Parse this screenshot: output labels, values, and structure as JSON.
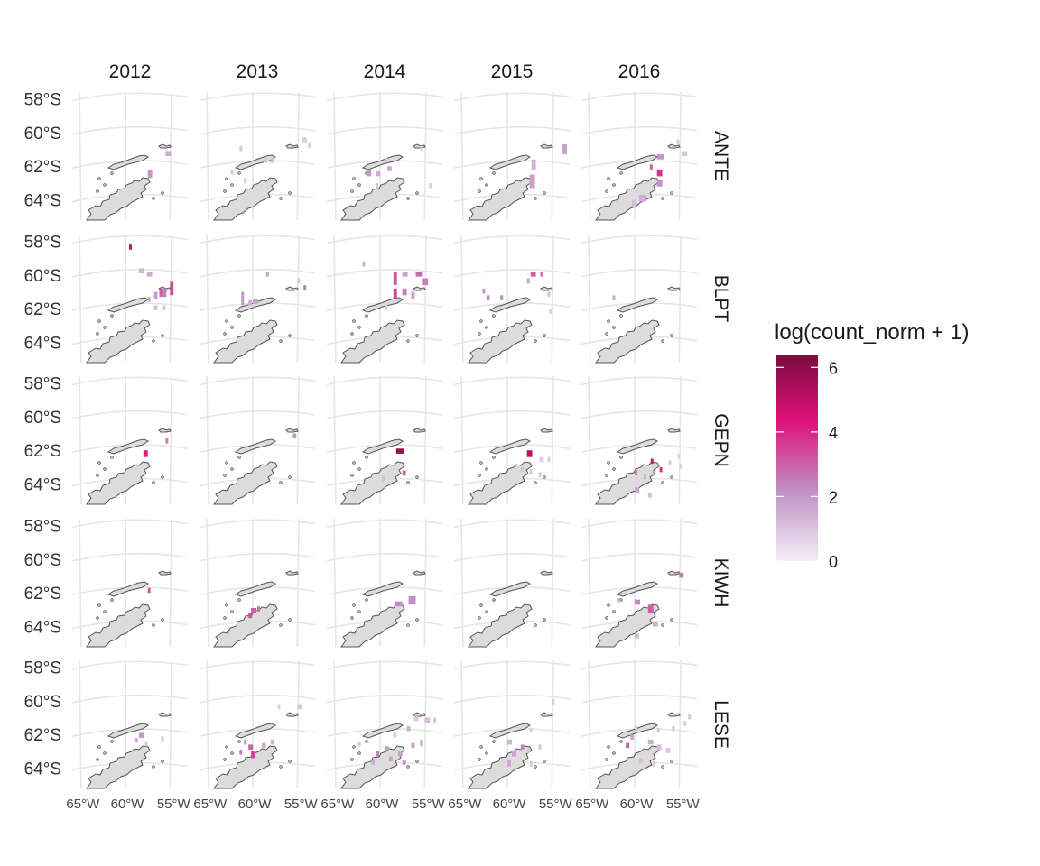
{
  "chart_data": {
    "type": "heatmap",
    "title": "",
    "xlabel": "",
    "ylabel": "",
    "facet_columns": [
      "2012",
      "2013",
      "2014",
      "2015",
      "2016"
    ],
    "facet_rows": [
      "ANTE",
      "BLPT",
      "GEPN",
      "KIWH",
      "LESE"
    ],
    "y_ticks": [
      "58°S",
      "60°S",
      "62°S",
      "64°S"
    ],
    "x_ticks": [
      "65°W",
      "60°W",
      "55°W"
    ],
    "x_range": [
      -66,
      -53
    ],
    "y_range": [
      -65.2,
      -57.6
    ],
    "grid": true,
    "legend": {
      "title": "log(count_norm + 1)",
      "placement": "right",
      "range": [
        0,
        6.4
      ],
      "ticks": [
        "0",
        "2",
        "4",
        "6"
      ],
      "tick_values": [
        0,
        2,
        4,
        6
      ],
      "colors": [
        "#f3eef7",
        "#c08dc3",
        "#e0117a",
        "#7a0d3c"
      ]
    },
    "land_color": "#dcdcdc",
    "coast_color": "#555555",
    "panels": {
      "ANTE": {
        "2012": [
          [
            -57.5,
            -62.2,
            2,
            0.5,
            0.5
          ],
          [
            -55.5,
            -61.1,
            1.6,
            0.6,
            0.3
          ]
        ],
        "2013": [
          [
            -61.5,
            -60.8,
            1,
            0.3,
            0.3
          ],
          [
            -58.8,
            -61.5,
            1,
            0.4,
            0.3
          ],
          [
            -58,
            -61.5,
            1.3,
            0.3,
            0.3
          ],
          [
            -62.5,
            -62.2,
            1,
            0.3,
            0.3
          ],
          [
            -61,
            -62.7,
            1,
            0.3,
            0.3
          ],
          [
            -54.5,
            -60.3,
            0.8,
            0.6,
            0.3
          ],
          [
            -53.8,
            -60.6,
            0.8,
            0.3,
            0.3
          ]
        ],
        "2014": [
          [
            -59.5,
            -61.5,
            1,
            0.3,
            0.3
          ],
          [
            -61.5,
            -62.2,
            2,
            0.5,
            0.4
          ],
          [
            -60.5,
            -62.3,
            1.6,
            0.5,
            0.3
          ],
          [
            -59.2,
            -62,
            1.5,
            0.5,
            0.3
          ],
          [
            -60.5,
            -63,
            1,
            0.3,
            0.3
          ],
          [
            -55.5,
            -60.8,
            0.8,
            0.3,
            0.3
          ],
          [
            -54.5,
            -63,
            0.8,
            0.3,
            0.3
          ]
        ],
        "2015": [
          [
            -57.5,
            -62.5,
            1.8,
            0.6,
            0.8
          ],
          [
            -57.3,
            -61.6,
            1.4,
            0.5,
            0.6
          ],
          [
            -53.8,
            -60.7,
            1.8,
            0.5,
            0.6
          ]
        ],
        "2016": [
          [
            -57.5,
            -61.3,
            2,
            0.8,
            0.3
          ],
          [
            -57.5,
            -62.2,
            3.8,
            0.6,
            0.4
          ],
          [
            -58.3,
            -61.9,
            3,
            0.3,
            0.3
          ],
          [
            -57.5,
            -62.8,
            2.2,
            0.6,
            0.4
          ],
          [
            -59.5,
            -63.7,
            1.5,
            0.8,
            0.4
          ],
          [
            -60.3,
            -64,
            1.2,
            0.5,
            0.4
          ],
          [
            -54.7,
            -61.1,
            1,
            0.6,
            0.3
          ],
          [
            -55.3,
            -60.4,
            0.8,
            0.3,
            0.3
          ]
        ]
      },
      "BLPT": {
        "2012": [
          [
            -59.6,
            -58.2,
            4.8,
            0.3,
            0.3
          ],
          [
            -58.5,
            -59.6,
            1.3,
            0.6,
            0.3
          ],
          [
            -57.6,
            -59.8,
            1.5,
            0.6,
            0.3
          ],
          [
            -56.2,
            -60.8,
            3,
            0.5,
            0.5
          ],
          [
            -55,
            -60.4,
            3.4,
            0.4,
            0.8
          ],
          [
            -55.8,
            -60.8,
            2.5,
            0.4,
            0.5
          ],
          [
            -56.8,
            -61,
            1.8,
            0.4,
            0.4
          ],
          [
            -56.8,
            -61.8,
            1.2,
            0.4,
            0.3
          ],
          [
            -57.5,
            -61.3,
            1.5,
            0.3,
            0.3
          ],
          [
            -55.8,
            -61.8,
            1,
            0.3,
            0.3
          ]
        ],
        "2013": [
          [
            -61.3,
            -61,
            2,
            0.3,
            0.8
          ],
          [
            -60,
            -61.4,
            1.8,
            0.6,
            0.3
          ],
          [
            -60.5,
            -61.5,
            1.5,
            0.4,
            0.3
          ],
          [
            -58.5,
            -59.8,
            1.8,
            0.3,
            0.3
          ],
          [
            -55,
            -60.2,
            1,
            0.3,
            0.3
          ],
          [
            -54.3,
            -60.6,
            2.6,
            0.3,
            0.3
          ]
        ],
        "2014": [
          [
            -62,
            -59.2,
            1.5,
            0.3,
            0.3
          ],
          [
            -58.5,
            -59.8,
            3.2,
            0.4,
            0.8
          ],
          [
            -57.5,
            -59.8,
            1.8,
            0.6,
            0.3
          ],
          [
            -56,
            -59.8,
            2.8,
            0.8,
            0.3
          ],
          [
            -55.2,
            -60.2,
            2.5,
            0.6,
            0.4
          ],
          [
            -58.5,
            -60.8,
            3.5,
            0.4,
            0.6
          ],
          [
            -57.5,
            -60.8,
            2.5,
            0.5,
            0.4
          ],
          [
            -56.5,
            -61,
            1.8,
            0.4,
            0.4
          ],
          [
            -59.5,
            -61.8,
            1,
            0.3,
            0.3
          ]
        ],
        "2015": [
          [
            -62.8,
            -60.8,
            2,
            0.3,
            0.3
          ],
          [
            -62.3,
            -61.2,
            2.4,
            0.3,
            0.3
          ],
          [
            -60.8,
            -61.2,
            2.2,
            0.3,
            0.3
          ],
          [
            -57.4,
            -59.8,
            3,
            0.6,
            0.3
          ],
          [
            -56.3,
            -59.8,
            2.8,
            0.3,
            0.3
          ],
          [
            -57.8,
            -60.2,
            1.8,
            0.3,
            0.3
          ],
          [
            -55.5,
            -61,
            1,
            0.3,
            0.3
          ],
          [
            -55.3,
            -62,
            0.8,
            0.3,
            0.3
          ]
        ],
        "2016": [
          [
            -62.5,
            -61.2,
            1.6,
            0.3,
            0.3
          ]
        ]
      },
      "GEPN": {
        "2012": [
          [
            -58,
            -62,
            4.2,
            0.5,
            0.4
          ],
          [
            -55.5,
            -61.3,
            2.5,
            0.3,
            0.3
          ]
        ],
        "2013": [
          [
            -55.5,
            -61,
            2,
            0.4,
            0.3
          ]
        ],
        "2014": [
          [
            -58.2,
            -61.9,
            5.8,
            0.9,
            0.3
          ],
          [
            -57.5,
            -63.2,
            3,
            0.4,
            0.3
          ],
          [
            -59.8,
            -63.5,
            1.2,
            0.3,
            0.3
          ]
        ],
        "2015": [
          [
            -57.8,
            -62,
            5,
            0.6,
            0.4
          ],
          [
            -56.4,
            -62.4,
            0.8,
            0.5,
            0.3
          ],
          [
            -55.5,
            -62.4,
            0.8,
            0.3,
            0.3
          ],
          [
            -58.5,
            -63,
            1,
            0.3,
            0.3
          ],
          [
            -57.5,
            -63.1,
            1,
            0.3,
            0.3
          ],
          [
            -56.5,
            -63.3,
            1,
            0.3,
            0.3
          ]
        ],
        "2016": [
          [
            -58.2,
            -62.5,
            4.6,
            0.3,
            0.3
          ],
          [
            -57.2,
            -63,
            3.8,
            0.3,
            0.3
          ],
          [
            -58,
            -63.2,
            2,
            0.3,
            0.3
          ],
          [
            -60,
            -63.2,
            2.4,
            0.3,
            0.3
          ],
          [
            -59,
            -63.4,
            1.5,
            0.3,
            0.3
          ],
          [
            -55,
            -62.8,
            0.8,
            0.3,
            0.3
          ],
          [
            -55.2,
            -62.2,
            0.8,
            0.3,
            0.3
          ],
          [
            -56.2,
            -62.6,
            1,
            0.3,
            0.3
          ],
          [
            -60,
            -64.2,
            1.8,
            0.5,
            0.3
          ],
          [
            -58.5,
            -64.5,
            1.2,
            0.4,
            0.3
          ]
        ]
      },
      "KIWH": {
        "2012": [
          [
            -57.5,
            -61.7,
            3.2,
            0.3,
            0.3
          ]
        ],
        "2013": [
          [
            -60.2,
            -62.9,
            3,
            0.6,
            0.3
          ],
          [
            -60.5,
            -63.2,
            3.2,
            0.4,
            0.3
          ],
          [
            -59.5,
            -62.8,
            2.8,
            0.3,
            0.3
          ]
        ],
        "2014": [
          [
            -58.3,
            -62.5,
            2.2,
            0.8,
            0.3
          ],
          [
            -56.8,
            -62.2,
            2.2,
            0.8,
            0.5
          ]
        ],
        "2015": [],
        "2016": [
          [
            -60,
            -62.4,
            2.4,
            0.6,
            0.3
          ],
          [
            -58.5,
            -62.7,
            3,
            0.6,
            0.5
          ],
          [
            -58,
            -63.7,
            1.5,
            0.6,
            0.3
          ],
          [
            -55,
            -60.8,
            2.5,
            0.5,
            0.3
          ],
          [
            -62,
            -62.3,
            1,
            0.3,
            0.3
          ],
          [
            -60,
            -64.4,
            1.2,
            0.5,
            0.3
          ]
        ]
      },
      "LESE": {
        "2012": [
          [
            -58.5,
            -61.9,
            2,
            0.6,
            0.3
          ],
          [
            -59,
            -62.2,
            1.5,
            0.4,
            0.3
          ],
          [
            -57.8,
            -62.4,
            1,
            0.3,
            0.3
          ],
          [
            -56,
            -62.1,
            1,
            0.3,
            0.3
          ]
        ],
        "2013": [
          [
            -61,
            -62.3,
            2,
            0.3,
            0.3
          ],
          [
            -60.5,
            -62.6,
            3,
            0.5,
            0.3
          ],
          [
            -60.2,
            -63,
            3.5,
            0.4,
            0.4
          ],
          [
            -59,
            -62.5,
            1.4,
            0.5,
            0.3
          ],
          [
            -58,
            -62.3,
            1.4,
            0.4,
            0.3
          ],
          [
            -61.5,
            -62.9,
            2.5,
            0.3,
            0.3
          ],
          [
            -55,
            -60.2,
            1,
            0.6,
            0.3
          ],
          [
            -57.2,
            -60.2,
            0.8,
            0.3,
            0.3
          ]
        ],
        "2014": [
          [
            -57,
            -61.5,
            1.5,
            0.4,
            0.3
          ],
          [
            -58.5,
            -61.9,
            1.2,
            0.3,
            0.3
          ],
          [
            -59.5,
            -62.7,
            2,
            0.5,
            0.3
          ],
          [
            -60.5,
            -63,
            2.4,
            0.4,
            0.3
          ],
          [
            -61,
            -63.5,
            1.6,
            0.4,
            0.3
          ],
          [
            -59,
            -63.3,
            1.8,
            0.4,
            0.3
          ],
          [
            -58,
            -63,
            1.8,
            0.5,
            0.3
          ],
          [
            -57.5,
            -63.5,
            2,
            0.4,
            0.3
          ],
          [
            -56.5,
            -62.5,
            1.8,
            0.4,
            0.3
          ],
          [
            -55.5,
            -62.3,
            1.8,
            0.3,
            0.4
          ],
          [
            -55,
            -61,
            1.2,
            0.6,
            0.3
          ],
          [
            -56.2,
            -60.9,
            1,
            0.5,
            0.3
          ],
          [
            -54,
            -61,
            1,
            0.3,
            0.3
          ],
          [
            -62.5,
            -62.4,
            1,
            0.3,
            0.3
          ]
        ],
        "2015": [
          [
            -60,
            -62.3,
            1.5,
            0.5,
            0.3
          ],
          [
            -58.5,
            -62.6,
            2.4,
            0.4,
            0.3
          ],
          [
            -59.5,
            -63,
            1.8,
            0.5,
            0.3
          ],
          [
            -57.8,
            -62.8,
            1,
            0.3,
            0.3
          ],
          [
            -56.5,
            -62.6,
            1,
            0.3,
            0.3
          ],
          [
            -57.5,
            -61.6,
            0.8,
            0.3,
            0.3
          ],
          [
            -55,
            -59.9,
            1,
            0.3,
            0.3
          ],
          [
            -60,
            -63.5,
            1.6,
            0.4,
            0.4
          ],
          [
            -57.5,
            -63.6,
            1,
            0.3,
            0.3
          ]
        ],
        "2016": [
          [
            -60,
            -61.5,
            1.2,
            0.3,
            0.3
          ],
          [
            -60.5,
            -62,
            1.8,
            0.4,
            0.3
          ],
          [
            -61,
            -62.5,
            3,
            0.4,
            0.3
          ],
          [
            -58.5,
            -62.3,
            1.5,
            0.6,
            0.3
          ],
          [
            -57.5,
            -62.6,
            1.2,
            0.5,
            0.3
          ],
          [
            -56.5,
            -62.8,
            1,
            0.5,
            0.3
          ],
          [
            -57.5,
            -61.6,
            1,
            0.3,
            0.3
          ],
          [
            -55.8,
            -61.5,
            1,
            0.3,
            0.3
          ],
          [
            -54.5,
            -61.2,
            1,
            0.3,
            0.3
          ],
          [
            -54,
            -60.8,
            1,
            0.3,
            0.3
          ],
          [
            -59.5,
            -63.4,
            1.2,
            0.4,
            0.3
          ],
          [
            -58,
            -63.6,
            1,
            0.3,
            0.3
          ]
        ]
      }
    }
  }
}
